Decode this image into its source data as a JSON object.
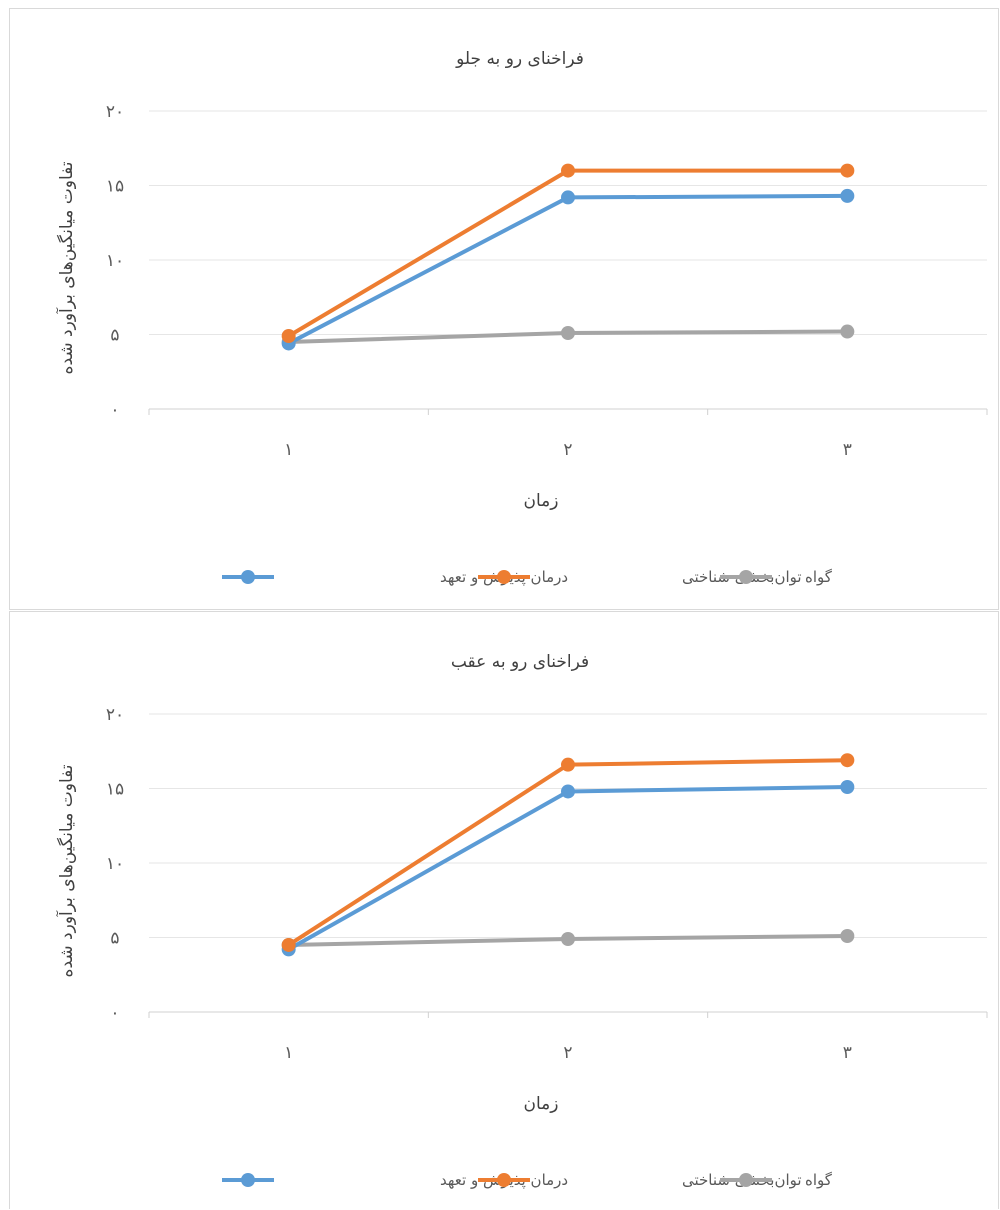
{
  "chart_data": [
    {
      "type": "line",
      "title": "فراخنای رو به جلو",
      "xlabel": "زمان",
      "ylabel": "تفاوت میانگین‌های برآورد شده",
      "categories": [
        "۱",
        "۲",
        "۳"
      ],
      "y_ticks": [
        "۰",
        "۵",
        "۱۰",
        "۱۵",
        "۲۰"
      ],
      "ylim": [
        0,
        20
      ],
      "grid": true,
      "legend_position": "bottom",
      "series": [
        {
          "name": "درمان پذیرش و تعهد",
          "color": "#5b9bd5",
          "values": [
            4.4,
            14.2,
            14.3
          ]
        },
        {
          "name": "توان‌بخشی شناختی",
          "color": "#ed7d31",
          "values": [
            4.9,
            16.0,
            16.0
          ]
        },
        {
          "name": "گواه",
          "color": "#a5a5a5",
          "values": [
            4.5,
            5.1,
            5.2
          ]
        }
      ]
    },
    {
      "type": "line",
      "title": "فراخنای رو به عقب",
      "xlabel": "زمان",
      "ylabel": "تفاوت میانگین‌های برآورد شده",
      "categories": [
        "۱",
        "۲",
        "۳"
      ],
      "y_ticks": [
        "۰",
        "۵",
        "۱۰",
        "۱۵",
        "۲۰"
      ],
      "ylim": [
        0,
        20
      ],
      "grid": true,
      "legend_position": "bottom",
      "series": [
        {
          "name": "درمان پذیرش و تعهد",
          "color": "#5b9bd5",
          "values": [
            4.2,
            14.8,
            15.1
          ]
        },
        {
          "name": "توان‌بخشی شناختی",
          "color": "#ed7d31",
          "values": [
            4.5,
            16.6,
            16.9
          ]
        },
        {
          "name": "گواه",
          "color": "#a5a5a5",
          "values": [
            4.5,
            4.9,
            5.1
          ]
        }
      ]
    }
  ]
}
